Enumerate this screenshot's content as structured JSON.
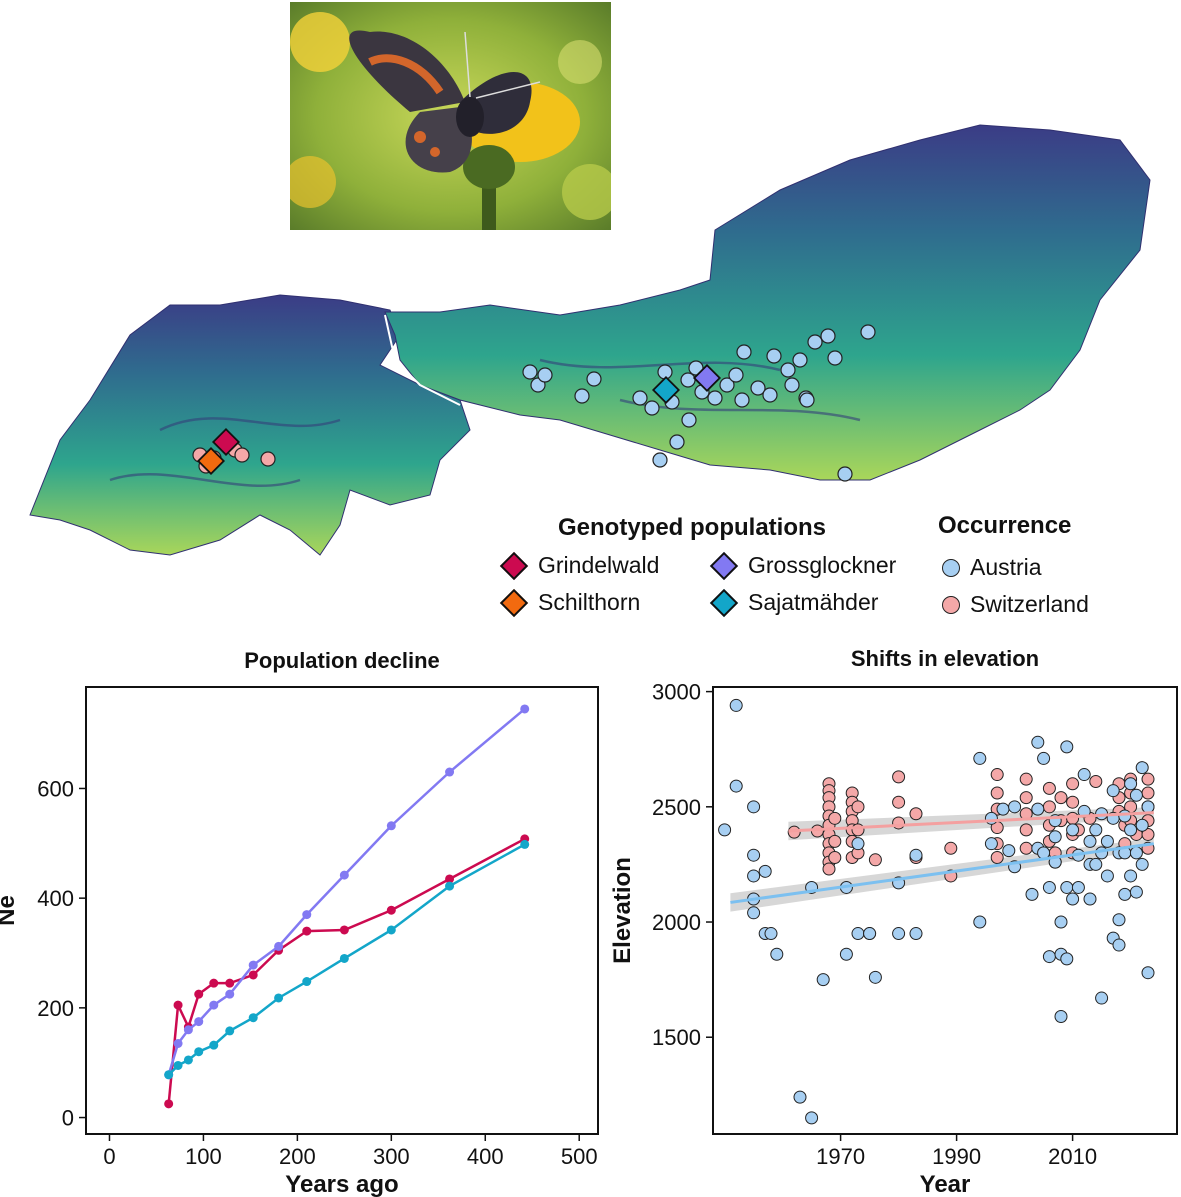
{
  "legend": {
    "genotyped_title": "Genotyped populations",
    "occurrence_title": "Occurrence",
    "populations": [
      {
        "name": "Grindelwald",
        "color": "#cc0a50"
      },
      {
        "name": "Schilthorn",
        "color": "#f26a0f"
      },
      {
        "name": "Grossglockner",
        "color": "#8279f2"
      },
      {
        "name": "Sajatmähder",
        "color": "#13a6c9"
      }
    ],
    "occurrence": [
      {
        "name": "Austria",
        "color": "#a7cff2"
      },
      {
        "name": "Switzerland",
        "color": "#f4a8a8"
      }
    ]
  },
  "chart_data": [
    {
      "type": "line",
      "title": "Population decline",
      "xlabel": "Years ago",
      "ylabel": "Ne",
      "xlim": [
        -25,
        520
      ],
      "ylim": [
        -30,
        785
      ],
      "xticks": [
        0,
        100,
        200,
        300,
        400,
        500
      ],
      "yticks": [
        0,
        200,
        400,
        600
      ],
      "series": [
        {
          "name": "Grindelwald",
          "color": "#cc0a50",
          "x": [
            63,
            73,
            84,
            95,
            111,
            128,
            153,
            180,
            210,
            250,
            300,
            362,
            442
          ],
          "y": [
            25,
            205,
            165,
            225,
            245,
            245,
            260,
            305,
            340,
            342,
            378,
            435,
            508
          ]
        },
        {
          "name": "Grossglockner",
          "color": "#8279f2",
          "x": [
            63,
            73,
            84,
            95,
            111,
            128,
            153,
            180,
            210,
            250,
            300,
            362,
            442
          ],
          "y": [
            78,
            135,
            160,
            175,
            205,
            225,
            278,
            312,
            370,
            442,
            532,
            630,
            745
          ]
        },
        {
          "name": "Sajatmähder",
          "color": "#13a6c9",
          "x": [
            63,
            73,
            84,
            95,
            111,
            128,
            153,
            180,
            210,
            250,
            300,
            362,
            442
          ],
          "y": [
            78,
            95,
            105,
            120,
            132,
            158,
            182,
            218,
            248,
            290,
            342,
            422,
            498
          ]
        }
      ]
    },
    {
      "type": "scatter",
      "title": "Shifts in elevation",
      "xlabel": "Year",
      "ylabel": "Elevation",
      "xlim": [
        1948,
        2028
      ],
      "ylim": [
        1080,
        3020
      ],
      "xticks": [
        1970,
        1990,
        2010
      ],
      "yticks": [
        1500,
        2000,
        2500,
        3000
      ],
      "trend": [
        {
          "name": "Switzerland",
          "color": "#f4a0a0",
          "x": [
            1961,
            2024
          ],
          "y": [
            2395,
            2475
          ]
        },
        {
          "name": "Austria",
          "color": "#7cc0f0",
          "x": [
            1951,
            2024
          ],
          "y": [
            2085,
            2340
          ]
        }
      ],
      "series": [
        {
          "name": "Switzerland",
          "color": "#f4a8a8",
          "x": [
            1962,
            1966,
            1968,
            1968,
            1968,
            1968,
            1968,
            1968,
            1968,
            1968,
            1968,
            1968,
            1968,
            1969,
            1969,
            1969,
            1972,
            1972,
            1972,
            1972,
            1972,
            1972,
            1972,
            1973,
            1973,
            1973,
            1976,
            1980,
            1980,
            1980,
            1983,
            1983,
            1989,
            1989,
            1997,
            1997,
            1997,
            1997,
            1997,
            1997,
            2002,
            2002,
            2002,
            2002,
            2002,
            2006,
            2006,
            2006,
            2006,
            2007,
            2007,
            2008,
            2008,
            2010,
            2010,
            2010,
            2010,
            2010,
            2011,
            2013,
            2014,
            2018,
            2018,
            2018,
            2019,
            2019,
            2020,
            2020,
            2020,
            2020,
            2021,
            2023,
            2023,
            2023,
            2023,
            2023,
            2023
          ],
          "y": [
            2390,
            2395,
            2600,
            2570,
            2540,
            2500,
            2460,
            2420,
            2380,
            2340,
            2300,
            2260,
            2230,
            2450,
            2350,
            2280,
            2560,
            2520,
            2480,
            2440,
            2400,
            2350,
            2280,
            2500,
            2400,
            2300,
            2270,
            2630,
            2520,
            2430,
            2470,
            2280,
            2320,
            2200,
            2640,
            2560,
            2490,
            2410,
            2340,
            2280,
            2620,
            2540,
            2470,
            2400,
            2320,
            2580,
            2500,
            2420,
            2350,
            2300,
            2260,
            2540,
            2440,
            2600,
            2520,
            2450,
            2380,
            2300,
            2400,
            2450,
            2610,
            2600,
            2540,
            2480,
            2420,
            2340,
            2620,
            2560,
            2500,
            2440,
            2380,
            2620,
            2560,
            2500,
            2440,
            2380,
            2320
          ]
        },
        {
          "name": "Austria",
          "color": "#a7cff2",
          "x": [
            1950,
            1952,
            1952,
            1955,
            1955,
            1955,
            1955,
            1955,
            1957,
            1957,
            1958,
            1959,
            1963,
            1965,
            1965,
            1967,
            1971,
            1971,
            1973,
            1973,
            1975,
            1975,
            1976,
            1980,
            1980,
            1983,
            1983,
            1994,
            1994,
            1996,
            1996,
            1998,
            1999,
            2000,
            2000,
            2003,
            2004,
            2004,
            2004,
            2005,
            2005,
            2006,
            2006,
            2007,
            2007,
            2007,
            2008,
            2008,
            2008,
            2009,
            2009,
            2009,
            2010,
            2010,
            2011,
            2011,
            2012,
            2012,
            2013,
            2013,
            2013,
            2014,
            2014,
            2015,
            2015,
            2015,
            2016,
            2016,
            2017,
            2017,
            2017,
            2018,
            2018,
            2018,
            2019,
            2019,
            2019,
            2020,
            2020,
            2020,
            2021,
            2021,
            2021,
            2022,
            2022,
            2022,
            2023,
            2023
          ],
          "y": [
            2400,
            2940,
            2590,
            2500,
            2290,
            2200,
            2100,
            2040,
            2220,
            1950,
            1950,
            1860,
            1240,
            1150,
            2150,
            1750,
            2150,
            1860,
            1950,
            2340,
            1950,
            1950,
            1760,
            2170,
            1950,
            2290,
            1950,
            2710,
            2000,
            2450,
            2340,
            2490,
            2310,
            2240,
            2500,
            2120,
            2780,
            2320,
            2490,
            2710,
            2300,
            1850,
            2150,
            2440,
            2370,
            2260,
            1860,
            2000,
            1590,
            2150,
            2760,
            1840,
            2100,
            2400,
            2290,
            2150,
            2640,
            2480,
            2350,
            2250,
            2100,
            2400,
            2250,
            2470,
            2300,
            1670,
            2350,
            2200,
            2570,
            2450,
            1930,
            2010,
            1900,
            2300,
            2460,
            2300,
            2120,
            2600,
            2400,
            2200,
            2130,
            2550,
            2300,
            2670,
            2420,
            2250,
            1780,
            2500
          ]
        }
      ]
    }
  ]
}
